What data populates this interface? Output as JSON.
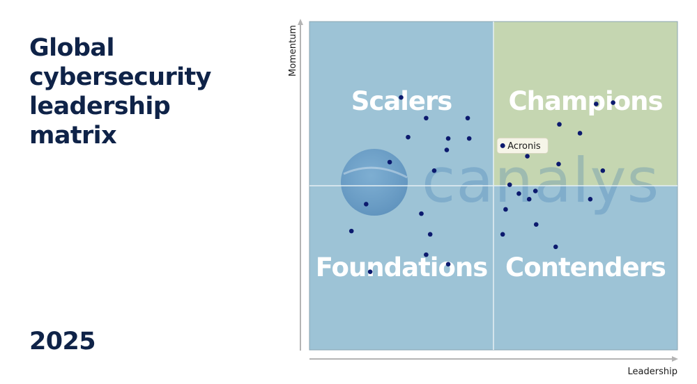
{
  "title_lines": [
    "Global",
    "cybersecurity",
    "leadership",
    "matrix"
  ],
  "year": "2025",
  "watermark": {
    "text": "canalys"
  },
  "colors": {
    "quadrant_blue": "#9dc3d6",
    "quadrant_green": "#c5d6b1",
    "point": "#0c1a6e",
    "title": "#0f2348"
  },
  "chart_data": {
    "type": "scatter",
    "title": "",
    "xlabel": "Leadership",
    "ylabel": "Momentum",
    "xlim": [
      0,
      100
    ],
    "ylim": [
      0,
      100
    ],
    "midpoint": {
      "x": 50,
      "y": 50
    },
    "grid": false,
    "quadrants": [
      {
        "name": "Scalers",
        "position": "top-left",
        "color": "#9dc3d6"
      },
      {
        "name": "Champions",
        "position": "top-right",
        "color": "#c5d6b1"
      },
      {
        "name": "Foundations",
        "position": "bottom-left",
        "color": "#9dc3d6"
      },
      {
        "name": "Contenders",
        "position": "bottom-right",
        "color": "#9dc3d6"
      }
    ],
    "highlight": {
      "label": "Acronis",
      "x": 52.5,
      "y": 62.2
    },
    "points": [
      {
        "x": 24.9,
        "y": 76.9
      },
      {
        "x": 31.7,
        "y": 70.6
      },
      {
        "x": 43.0,
        "y": 70.6
      },
      {
        "x": 26.8,
        "y": 64.8
      },
      {
        "x": 37.7,
        "y": 64.4
      },
      {
        "x": 43.4,
        "y": 64.4
      },
      {
        "x": 37.3,
        "y": 60.9
      },
      {
        "x": 21.8,
        "y": 57.2
      },
      {
        "x": 33.9,
        "y": 54.6
      },
      {
        "x": 15.4,
        "y": 44.4
      },
      {
        "x": 30.4,
        "y": 41.5
      },
      {
        "x": 11.4,
        "y": 36.2
      },
      {
        "x": 32.8,
        "y": 35.2
      },
      {
        "x": 31.7,
        "y": 29.0
      },
      {
        "x": 37.7,
        "y": 26.1
      },
      {
        "x": 16.5,
        "y": 23.8
      },
      {
        "x": 77.9,
        "y": 74.9
      },
      {
        "x": 82.5,
        "y": 75.3
      },
      {
        "x": 67.9,
        "y": 68.7
      },
      {
        "x": 73.5,
        "y": 66.0
      },
      {
        "x": 59.2,
        "y": 59.0
      },
      {
        "x": 67.7,
        "y": 56.6
      },
      {
        "x": 79.7,
        "y": 54.6
      },
      {
        "x": 54.4,
        "y": 50.3
      },
      {
        "x": 61.4,
        "y": 48.4
      },
      {
        "x": 56.9,
        "y": 47.6
      },
      {
        "x": 59.7,
        "y": 45.9
      },
      {
        "x": 76.3,
        "y": 45.9
      },
      {
        "x": 53.3,
        "y": 42.8
      },
      {
        "x": 61.6,
        "y": 38.2
      },
      {
        "x": 52.5,
        "y": 35.2
      },
      {
        "x": 66.9,
        "y": 31.4
      }
    ]
  }
}
